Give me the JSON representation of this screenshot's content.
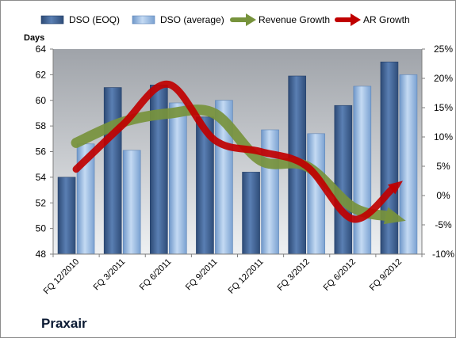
{
  "chart_data": {
    "type": "bar",
    "company": "Praxair",
    "ylabel": "Days",
    "categories": [
      "FQ 12/2010",
      "FQ 3/2011",
      "FQ 6/2011",
      "FQ 9/2011",
      "FQ 12/2011",
      "FQ 3/2012",
      "FQ 6/2012",
      "FQ 9/2012"
    ],
    "left_axis": {
      "min": 48,
      "max": 64,
      "ticks": [
        "48",
        "50",
        "52",
        "54",
        "56",
        "58",
        "60",
        "62",
        "64"
      ]
    },
    "right_axis": {
      "min": -10,
      "max": 25,
      "ticks": [
        "-10%",
        "-5%",
        "0%",
        "5%",
        "10%",
        "15%",
        "20%",
        "25%"
      ]
    },
    "series": [
      {
        "name": "DSO (EOQ)",
        "kind": "bar",
        "axis": "left",
        "color": "#3f5f8f",
        "values": [
          54.0,
          61.0,
          61.2,
          58.7,
          54.4,
          61.9,
          59.6,
          63.0
        ]
      },
      {
        "name": "DSO (average)",
        "kind": "bar",
        "axis": "left",
        "color": "#8db3e2",
        "values": [
          56.6,
          56.1,
          59.8,
          60.0,
          57.7,
          57.4,
          61.1,
          62.0
        ]
      },
      {
        "name": "Revenue Growth",
        "kind": "line",
        "axis": "right",
        "color": "#77933c",
        "values": [
          9,
          12.5,
          14,
          14,
          6,
          5,
          -2,
          -4
        ]
      },
      {
        "name": "AR Growth",
        "kind": "line",
        "axis": "right",
        "color": "#c00000",
        "values": [
          4.5,
          12,
          19,
          9.5,
          7.5,
          5,
          -4,
          2
        ]
      }
    ],
    "legend_position": "top",
    "grid": false
  }
}
